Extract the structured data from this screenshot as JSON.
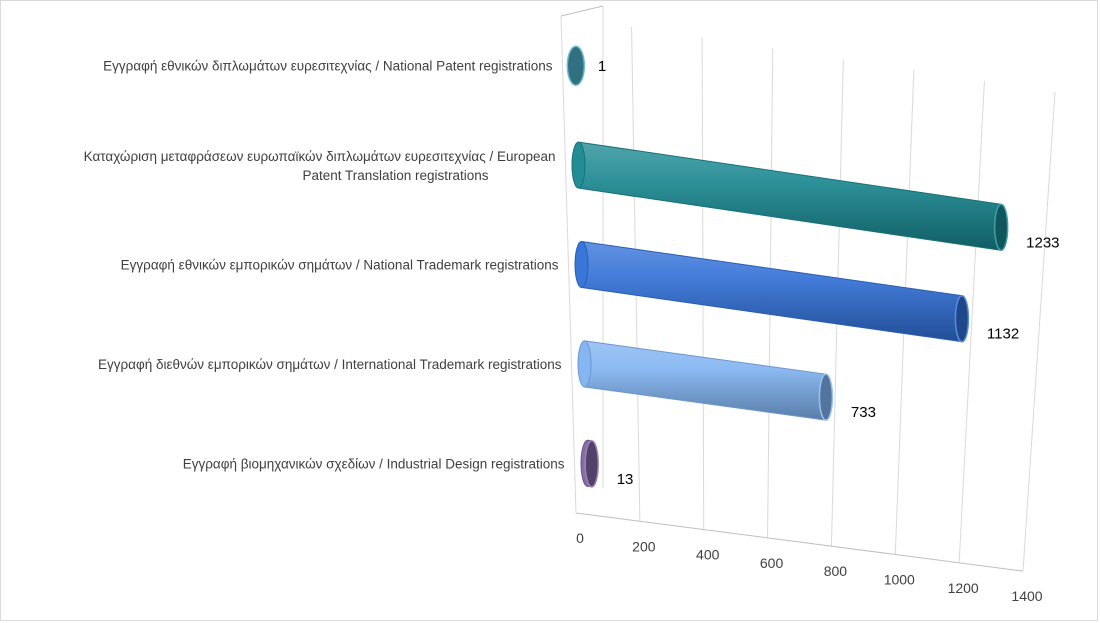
{
  "chart_data": {
    "type": "bar",
    "orientation": "horizontal",
    "style": "3d-cylinder",
    "categories": [
      "Εγγραφή εθνικών διπλωμάτων ευρεσιτεχνίας / National Patent registrations",
      "Καταχώριση μεταφράσεων ευρωπαϊκών διπλωμάτων ευρεσιτεχνίας / European Patent Translation registrations",
      "Εγγραφή εθνικών εμπορικών σημάτων / National Trademark registrations",
      "Εγγραφή διεθνών εμπορικών σημάτων / International Trademark registrations",
      "Εγγραφή βιομηχανικών σχεδίων / Industrial Design registrations"
    ],
    "category_label_lines": [
      [
        "Εγγραφή εθνικών διπλωμάτων ευρεσιτεχνίας / National Patent registrations"
      ],
      [
        "Καταχώριση μεταφράσεων ευρωπαϊκών διπλωμάτων ευρεσιτεχνίας / European",
        "Patent Translation registrations"
      ],
      [
        "Εγγραφή εθνικών εμπορικών σημάτων / National Trademark registrations"
      ],
      [
        "Εγγραφή διεθνών εμπορικών σημάτων / International Trademark registrations"
      ],
      [
        "Εγγραφή βιομηχανικών σχεδίων / Industrial Design registrations"
      ]
    ],
    "values": [
      1,
      1233,
      1132,
      733,
      13
    ],
    "data_labels": [
      "1",
      "1233",
      "1132",
      "733",
      "13"
    ],
    "bar_colors": [
      "#4bacc6",
      "#17868f",
      "#2f6fd6",
      "#7fb2f0",
      "#8064a2"
    ],
    "xlim": [
      0,
      1400
    ],
    "x_ticks": [
      "0",
      "200",
      "400",
      "600",
      "800",
      "1000",
      "1200",
      "1400"
    ],
    "grid": true,
    "legend": "none",
    "title": "",
    "xlabel": "",
    "ylabel": ""
  }
}
